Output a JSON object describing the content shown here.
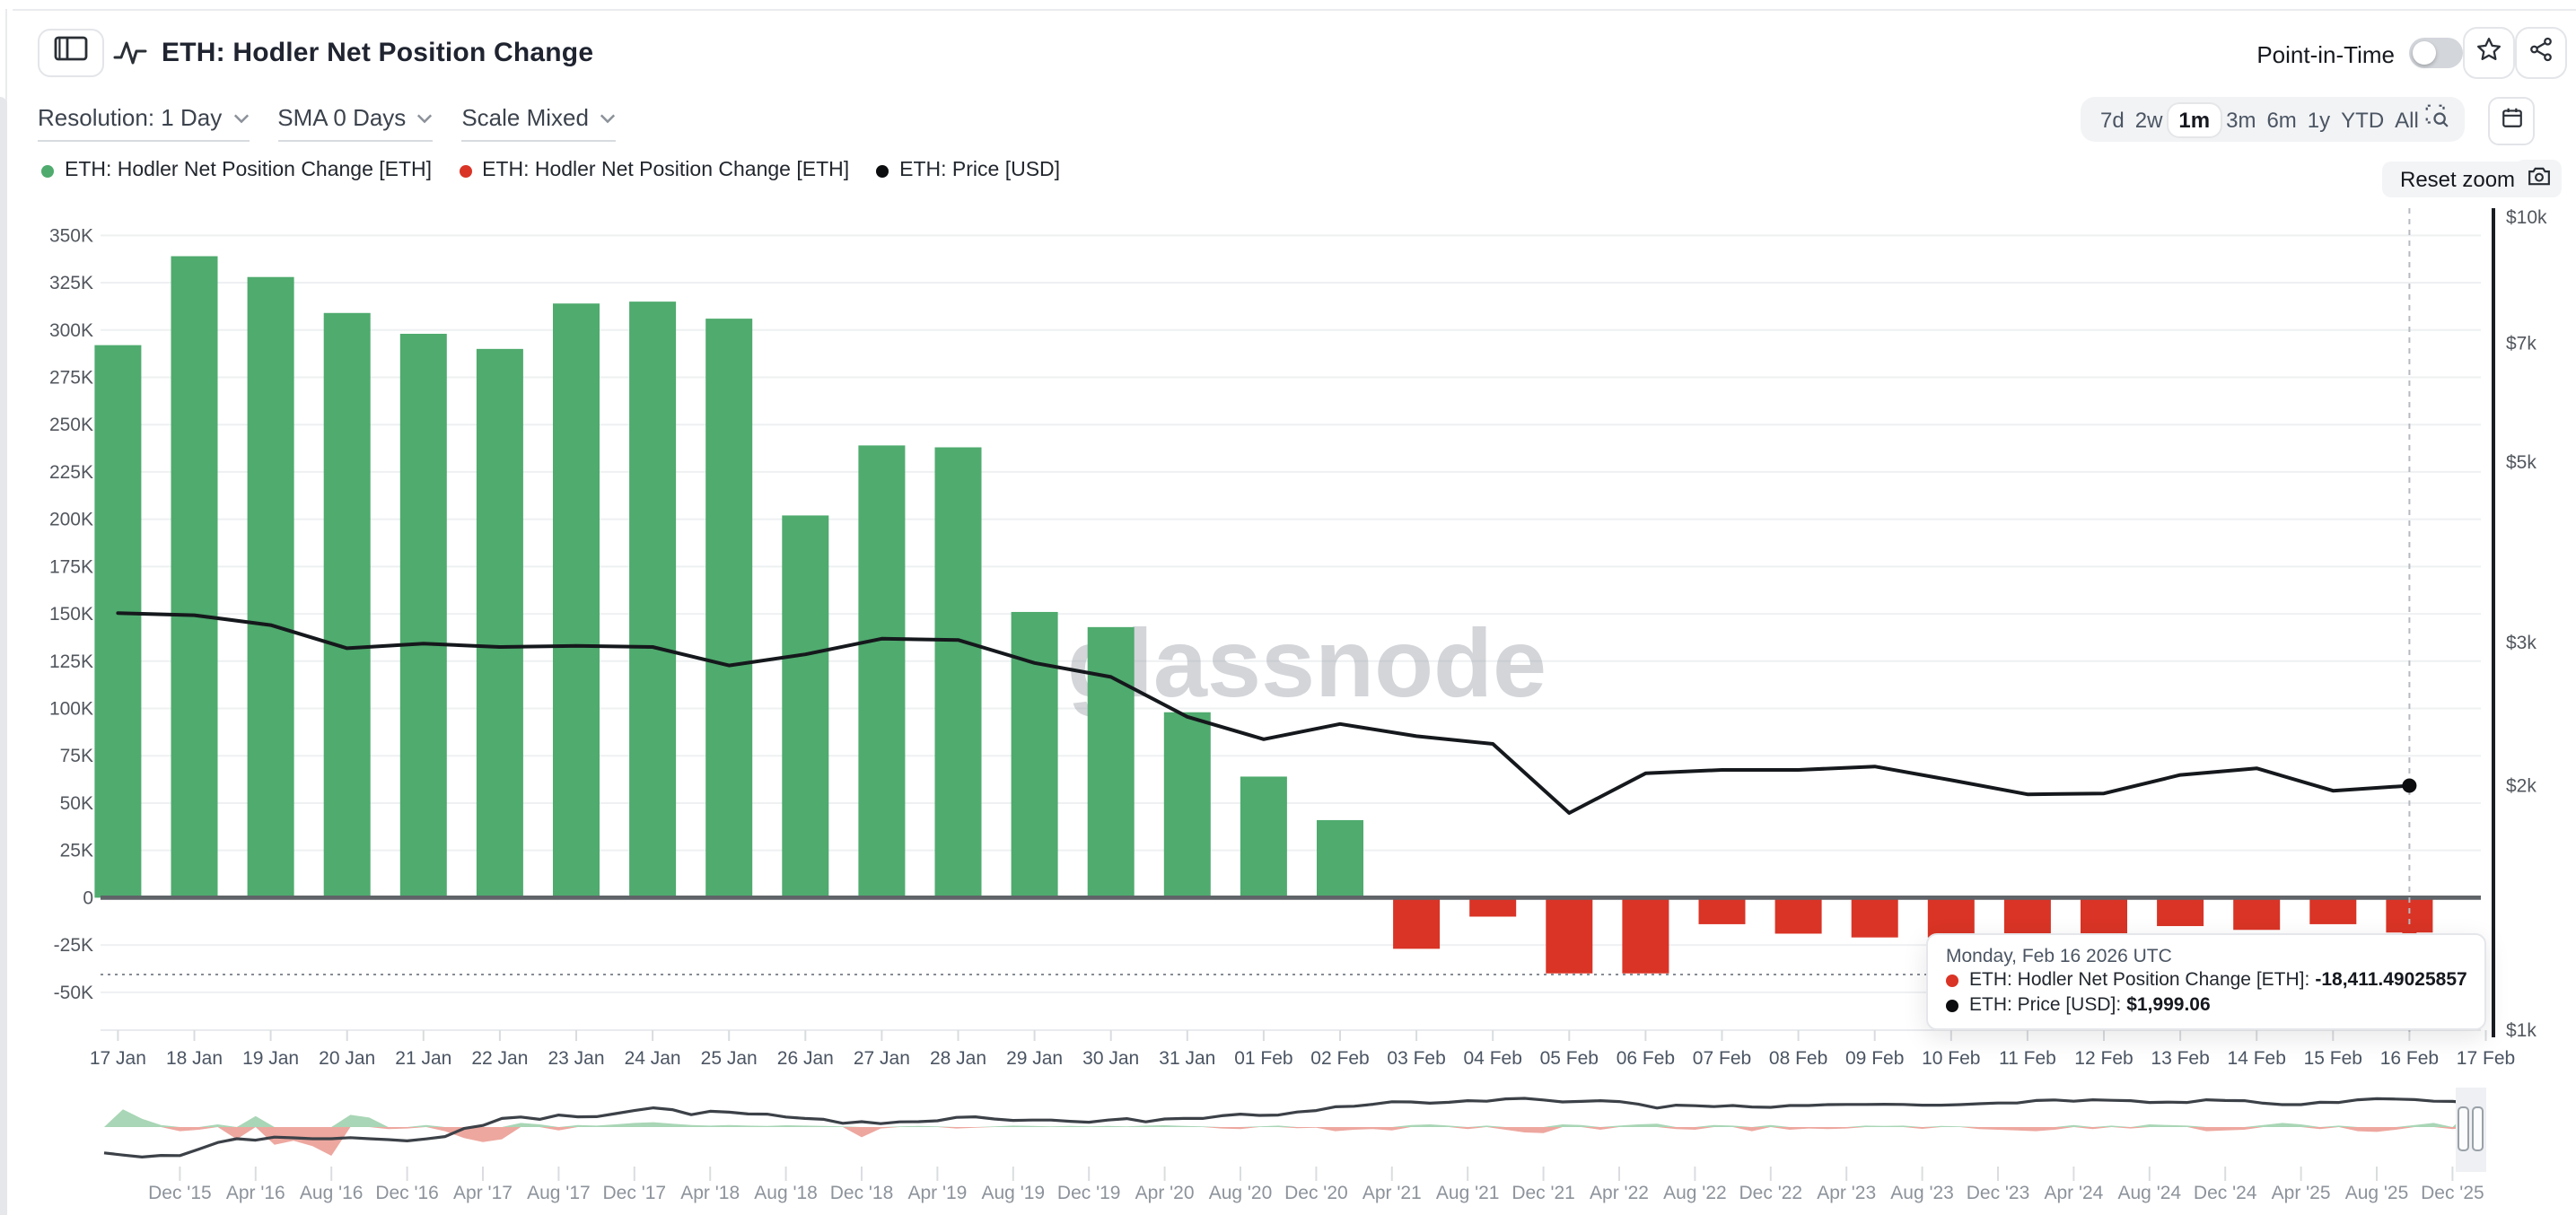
{
  "header": {
    "title": "ETH: Hodler Net Position Change",
    "point_in_time_label": "Point-in-Time",
    "point_in_time_on": false
  },
  "toolbar": {
    "resolution_label": "Resolution: 1 Day",
    "sma_label": "SMA 0 Days",
    "scale_label": "Scale Mixed"
  },
  "range_selector": {
    "options": [
      "7d",
      "2w",
      "1m",
      "3m",
      "6m",
      "1y",
      "YTD",
      "All"
    ],
    "active": "1m"
  },
  "actions": {
    "reset_zoom_label": "Reset zoom"
  },
  "legend": [
    {
      "label": "ETH: Hodler Net Position Change [ETH]",
      "color": "#4fab6e"
    },
    {
      "label": "ETH: Hodler Net Position Change [ETH]",
      "color": "#d93426"
    },
    {
      "label": "ETH: Price [USD]",
      "color": "#0b0d0f"
    }
  ],
  "watermark": "glassnode",
  "tooltip": {
    "date": "Monday, Feb 16 2026 UTC",
    "rows": [
      {
        "label": "ETH: Hodler Net Position Change [ETH]:",
        "value": "-18,411.49025857",
        "color": "#d93426"
      },
      {
        "label": "ETH: Price [USD]:",
        "value": "$1,999.06",
        "color": "#0b0d0f"
      }
    ]
  },
  "colors": {
    "bar_positive": "#4fab6e",
    "bar_negative": "#d93426",
    "price_line": "#15181c",
    "grid": "#eef0f2",
    "zero_line": "#5f6468",
    "axis_text": "#52575e",
    "nav_pos_fill": "#a9d6b6",
    "nav_neg_fill": "#eda79f",
    "nav_line": "#3c4148"
  },
  "chart_data": {
    "type": "bar",
    "title": "ETH: Hodler Net Position Change",
    "x_labels": [
      "17 Jan",
      "18 Jan",
      "19 Jan",
      "20 Jan",
      "21 Jan",
      "22 Jan",
      "23 Jan",
      "24 Jan",
      "25 Jan",
      "26 Jan",
      "27 Jan",
      "28 Jan",
      "29 Jan",
      "30 Jan",
      "31 Jan",
      "01 Feb",
      "02 Feb",
      "03 Feb",
      "04 Feb",
      "05 Feb",
      "06 Feb",
      "07 Feb",
      "08 Feb",
      "09 Feb",
      "10 Feb",
      "11 Feb",
      "12 Feb",
      "13 Feb",
      "14 Feb",
      "15 Feb",
      "16 Feb",
      "17 Feb"
    ],
    "bar_series": {
      "name": "ETH: Hodler Net Position Change [ETH]",
      "unit": "thousand ETH",
      "values": [
        292,
        339,
        328,
        309,
        298,
        290,
        314,
        315,
        306,
        202,
        239,
        238,
        151,
        143,
        98,
        64,
        41,
        -27,
        -10,
        -40,
        -40,
        -14,
        -19,
        -21,
        -21,
        -19,
        -20,
        -15,
        -17,
        -14,
        -18.41149
      ]
    },
    "line_series": {
      "name": "ETH: Price [USD]",
      "values": [
        3260,
        3240,
        3150,
        2950,
        2990,
        2960,
        2970,
        2960,
        2810,
        2900,
        3030,
        3020,
        2830,
        2720,
        2430,
        2280,
        2380,
        2300,
        2250,
        1850,
        2070,
        2090,
        2090,
        2110,
        2030,
        1950,
        1955,
        2060,
        2100,
        1970,
        1999.06
      ]
    },
    "left_axis": {
      "unit": "K ETH",
      "tick_values": [
        350,
        325,
        300,
        275,
        250,
        225,
        200,
        175,
        150,
        125,
        100,
        75,
        50,
        25,
        0,
        -25,
        -50
      ],
      "tick_labels": [
        "350K",
        "325K",
        "300K",
        "275K",
        "250K",
        "225K",
        "200K",
        "175K",
        "150K",
        "125K",
        "100K",
        "75K",
        "50K",
        "25K",
        "0",
        "-25K",
        "-50K"
      ]
    },
    "right_axis": {
      "scale": "log",
      "tick_values": [
        10000,
        7000,
        5000,
        3000,
        2000,
        1000
      ],
      "tick_labels": [
        "$10k",
        "$7k",
        "$5k",
        "$3k",
        "$2k",
        "$1k"
      ]
    },
    "grid": "horizontal",
    "hover_index": 30,
    "legend_position": "top-left"
  },
  "navigator": {
    "start_month": "2015-08",
    "labels": [
      "Dec '15",
      "Apr '16",
      "Aug '16",
      "Dec '16",
      "Apr '17",
      "Aug '17",
      "Dec '17",
      "Apr '18",
      "Aug '18",
      "Dec '18",
      "Apr '19",
      "Aug '19",
      "Dec '19",
      "Apr '20",
      "Aug '20",
      "Dec '20",
      "Apr '21",
      "Aug '21",
      "Dec '21",
      "Apr '22",
      "Aug '22",
      "Dec '22",
      "Apr '23",
      "Aug '23",
      "Dec '23",
      "Apr '24",
      "Aug '24",
      "Dec '24",
      "Apr '25",
      "Aug '25",
      "Dec '25"
    ],
    "change_thousands": [
      0,
      260,
      120,
      30,
      -60,
      -40,
      40,
      -180,
      160,
      -260,
      -200,
      -280,
      -420,
      180,
      140,
      -30,
      -20,
      30,
      -60,
      -160,
      -220,
      -180,
      60,
      40,
      -50,
      30,
      20,
      40,
      60,
      70,
      50,
      30,
      20,
      30,
      20,
      15,
      25,
      20,
      15,
      10,
      -150,
      -20,
      10,
      15,
      10,
      -20,
      -10,
      10,
      20,
      15,
      10,
      15,
      10,
      15,
      10,
      20,
      25,
      15,
      10,
      -20,
      -30,
      10,
      20,
      -15,
      -10,
      -60,
      -40,
      -30,
      -50,
      30,
      40,
      20,
      -30,
      20,
      -40,
      -80,
      -90,
      40,
      30,
      -40,
      20,
      40,
      50,
      -30,
      -40,
      30,
      20,
      -60,
      30,
      -40,
      -20,
      -30,
      -20,
      20,
      15,
      20,
      -25,
      15,
      10,
      -30,
      -40,
      -50,
      -60,
      -40,
      30,
      -30,
      20,
      -20,
      40,
      30,
      20,
      -60,
      -50,
      -40,
      30,
      60,
      40,
      -30,
      20,
      -60,
      -70,
      -40,
      30,
      60,
      -30,
      250,
      -20
    ],
    "price_usd": [
      1.3,
      0.95,
      0.7,
      0.9,
      0.87,
      2.3,
      6.2,
      11,
      8.8,
      14,
      12.5,
      11,
      11,
      13,
      11,
      9.6,
      8,
      10.7,
      15,
      50,
      80,
      230,
      280,
      200,
      380,
      290,
      300,
      470,
      750,
      1100,
      850,
      400,
      670,
      580,
      450,
      430,
      280,
      230,
      200,
      110,
      140,
      105,
      135,
      140,
      160,
      270,
      290,
      210,
      170,
      180,
      180,
      150,
      130,
      180,
      220,
      135,
      210,
      230,
      225,
      345,
      430,
      360,
      385,
      600,
      735,
      1300,
      1420,
      1920,
      2770,
      2700,
      2270,
      2530,
      3230,
      3000,
      4290,
      4630,
      3680,
      2690,
      2920,
      3280,
      2820,
      1940,
      1070,
      1680,
      1550,
      1330,
      1570,
      1290,
      1200,
      1580,
      1600,
      1820,
      1880,
      1870,
      1930,
      1860,
      1650,
      1670,
      1800,
      2050,
      2280,
      2280,
      3380,
      3650,
      3010,
      3760,
      3440,
      3230,
      2510,
      2600,
      2520,
      3700,
      3330,
      3300,
      2240,
      1820,
      1790,
      2530,
      2480,
      3700,
      4400,
      4150,
      3850,
      3000,
      2900,
      2300,
      2000
    ]
  }
}
